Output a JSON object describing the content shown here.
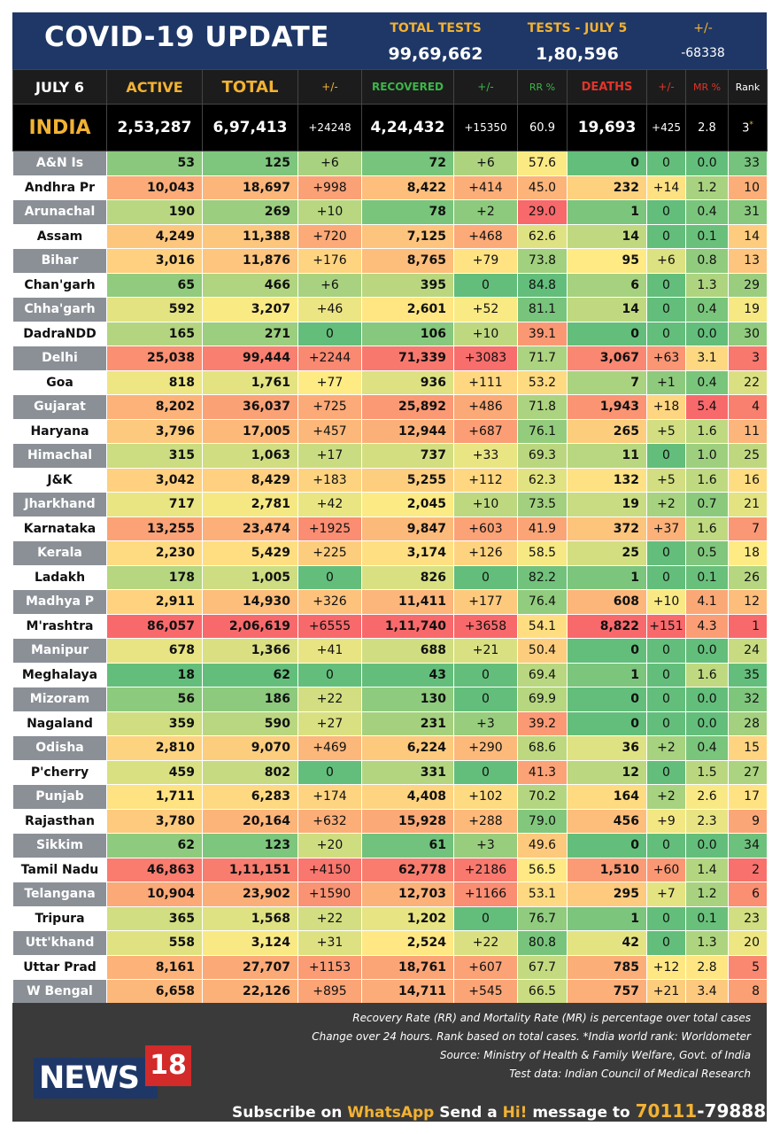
{
  "header": {
    "title": "COVID-19 UPDATE",
    "total_tests_label": "TOTAL TESTS",
    "total_tests_value": "99,69,662",
    "tests_day_label": "TESTS - JULY 5",
    "tests_day_value": "1,80,596",
    "change_label": "+/-",
    "change_value": "-68338"
  },
  "columns": {
    "date": "JULY 6",
    "active": "ACTIVE",
    "total": "TOTAL",
    "total_change": "+/-",
    "recovered": "RECOVERED",
    "recovered_change": "+/-",
    "rr": "RR %",
    "deaths": "DEATHS",
    "deaths_change": "+/-",
    "mr": "MR %",
    "rank": "Rank"
  },
  "india": {
    "name": "INDIA",
    "active": "2,53,287",
    "total": "6,97,413",
    "total_change": "+24248",
    "recovered": "4,24,432",
    "recovered_change": "+15350",
    "rr": "60.9",
    "deaths": "19,693",
    "deaths_change": "+425",
    "mr": "2.8",
    "rank": "3",
    "rank_mark": "*"
  },
  "rows": [
    {
      "name": "A&N Is",
      "active": "53",
      "total": "125",
      "tc": "+6",
      "rec": "72",
      "rc": "+6",
      "rr": "57.6",
      "deaths": "0",
      "dc": "0",
      "mr": "0.0",
      "rank": "33"
    },
    {
      "name": "Andhra Pr",
      "active": "10,043",
      "total": "18,697",
      "tc": "+998",
      "rec": "8,422",
      "rc": "+414",
      "rr": "45.0",
      "deaths": "232",
      "dc": "+14",
      "mr": "1.2",
      "rank": "10"
    },
    {
      "name": "Arunachal",
      "active": "190",
      "total": "269",
      "tc": "+10",
      "rec": "78",
      "rc": "+2",
      "rr": "29.0",
      "deaths": "1",
      "dc": "0",
      "mr": "0.4",
      "rank": "31"
    },
    {
      "name": "Assam",
      "active": "4,249",
      "total": "11,388",
      "tc": "+720",
      "rec": "7,125",
      "rc": "+468",
      "rr": "62.6",
      "deaths": "14",
      "dc": "0",
      "mr": "0.1",
      "rank": "14"
    },
    {
      "name": "Bihar",
      "active": "3,016",
      "total": "11,876",
      "tc": "+176",
      "rec": "8,765",
      "rc": "+79",
      "rr": "73.8",
      "deaths": "95",
      "dc": "+6",
      "mr": "0.8",
      "rank": "13"
    },
    {
      "name": "Chan'garh",
      "active": "65",
      "total": "466",
      "tc": "+6",
      "rec": "395",
      "rc": "0",
      "rr": "84.8",
      "deaths": "6",
      "dc": "0",
      "mr": "1.3",
      "rank": "29"
    },
    {
      "name": "Chha'garh",
      "active": "592",
      "total": "3,207",
      "tc": "+46",
      "rec": "2,601",
      "rc": "+52",
      "rr": "81.1",
      "deaths": "14",
      "dc": "0",
      "mr": "0.4",
      "rank": "19"
    },
    {
      "name": "DadraNDD",
      "active": "165",
      "total": "271",
      "tc": "0",
      "rec": "106",
      "rc": "+10",
      "rr": "39.1",
      "deaths": "0",
      "dc": "0",
      "mr": "0.0",
      "rank": "30"
    },
    {
      "name": "Delhi",
      "active": "25,038",
      "total": "99,444",
      "tc": "+2244",
      "rec": "71,339",
      "rc": "+3083",
      "rr": "71.7",
      "deaths": "3,067",
      "dc": "+63",
      "mr": "3.1",
      "rank": "3"
    },
    {
      "name": "Goa",
      "active": "818",
      "total": "1,761",
      "tc": "+77",
      "rec": "936",
      "rc": "+111",
      "rr": "53.2",
      "deaths": "7",
      "dc": "+1",
      "mr": "0.4",
      "rank": "22"
    },
    {
      "name": "Gujarat",
      "active": "8,202",
      "total": "36,037",
      "tc": "+725",
      "rec": "25,892",
      "rc": "+486",
      "rr": "71.8",
      "deaths": "1,943",
      "dc": "+18",
      "mr": "5.4",
      "rank": "4"
    },
    {
      "name": "Haryana",
      "active": "3,796",
      "total": "17,005",
      "tc": "+457",
      "rec": "12,944",
      "rc": "+687",
      "rr": "76.1",
      "deaths": "265",
      "dc": "+5",
      "mr": "1.6",
      "rank": "11"
    },
    {
      "name": "Himachal",
      "active": "315",
      "total": "1,063",
      "tc": "+17",
      "rec": "737",
      "rc": "+33",
      "rr": "69.3",
      "deaths": "11",
      "dc": "0",
      "mr": "1.0",
      "rank": "25"
    },
    {
      "name": "J&K",
      "active": "3,042",
      "total": "8,429",
      "tc": "+183",
      "rec": "5,255",
      "rc": "+112",
      "rr": "62.3",
      "deaths": "132",
      "dc": "+5",
      "mr": "1.6",
      "rank": "16"
    },
    {
      "name": "Jharkhand",
      "active": "717",
      "total": "2,781",
      "tc": "+42",
      "rec": "2,045",
      "rc": "+10",
      "rr": "73.5",
      "deaths": "19",
      "dc": "+2",
      "mr": "0.7",
      "rank": "21"
    },
    {
      "name": "Karnataka",
      "active": "13,255",
      "total": "23,474",
      "tc": "+1925",
      "rec": "9,847",
      "rc": "+603",
      "rr": "41.9",
      "deaths": "372",
      "dc": "+37",
      "mr": "1.6",
      "rank": "7"
    },
    {
      "name": "Kerala",
      "active": "2,230",
      "total": "5,429",
      "tc": "+225",
      "rec": "3,174",
      "rc": "+126",
      "rr": "58.5",
      "deaths": "25",
      "dc": "0",
      "mr": "0.5",
      "rank": "18"
    },
    {
      "name": "Ladakh",
      "active": "178",
      "total": "1,005",
      "tc": "0",
      "rec": "826",
      "rc": "0",
      "rr": "82.2",
      "deaths": "1",
      "dc": "0",
      "mr": "0.1",
      "rank": "26"
    },
    {
      "name": "Madhya P",
      "active": "2,911",
      "total": "14,930",
      "tc": "+326",
      "rec": "11,411",
      "rc": "+177",
      "rr": "76.4",
      "deaths": "608",
      "dc": "+10",
      "mr": "4.1",
      "rank": "12"
    },
    {
      "name": "M'rashtra",
      "active": "86,057",
      "total": "2,06,619",
      "tc": "+6555",
      "rec": "1,11,740",
      "rc": "+3658",
      "rr": "54.1",
      "deaths": "8,822",
      "dc": "+151",
      "mr": "4.3",
      "rank": "1"
    },
    {
      "name": "Manipur",
      "active": "678",
      "total": "1,366",
      "tc": "+41",
      "rec": "688",
      "rc": "+21",
      "rr": "50.4",
      "deaths": "0",
      "dc": "0",
      "mr": "0.0",
      "rank": "24"
    },
    {
      "name": "Meghalaya",
      "active": "18",
      "total": "62",
      "tc": "0",
      "rec": "43",
      "rc": "0",
      "rr": "69.4",
      "deaths": "1",
      "dc": "0",
      "mr": "1.6",
      "rank": "35"
    },
    {
      "name": "Mizoram",
      "active": "56",
      "total": "186",
      "tc": "+22",
      "rec": "130",
      "rc": "0",
      "rr": "69.9",
      "deaths": "0",
      "dc": "0",
      "mr": "0.0",
      "rank": "32"
    },
    {
      "name": "Nagaland",
      "active": "359",
      "total": "590",
      "tc": "+27",
      "rec": "231",
      "rc": "+3",
      "rr": "39.2",
      "deaths": "0",
      "dc": "0",
      "mr": "0.0",
      "rank": "28"
    },
    {
      "name": "Odisha",
      "active": "2,810",
      "total": "9,070",
      "tc": "+469",
      "rec": "6,224",
      "rc": "+290",
      "rr": "68.6",
      "deaths": "36",
      "dc": "+2",
      "mr": "0.4",
      "rank": "15"
    },
    {
      "name": "P'cherry",
      "active": "459",
      "total": "802",
      "tc": "0",
      "rec": "331",
      "rc": "0",
      "rr": "41.3",
      "deaths": "12",
      "dc": "0",
      "mr": "1.5",
      "rank": "27"
    },
    {
      "name": "Punjab",
      "active": "1,711",
      "total": "6,283",
      "tc": "+174",
      "rec": "4,408",
      "rc": "+102",
      "rr": "70.2",
      "deaths": "164",
      "dc": "+2",
      "mr": "2.6",
      "rank": "17"
    },
    {
      "name": "Rajasthan",
      "active": "3,780",
      "total": "20,164",
      "tc": "+632",
      "rec": "15,928",
      "rc": "+288",
      "rr": "79.0",
      "deaths": "456",
      "dc": "+9",
      "mr": "2.3",
      "rank": "9"
    },
    {
      "name": "Sikkim",
      "active": "62",
      "total": "123",
      "tc": "+20",
      "rec": "61",
      "rc": "+3",
      "rr": "49.6",
      "deaths": "0",
      "dc": "0",
      "mr": "0.0",
      "rank": "34"
    },
    {
      "name": "Tamil Nadu",
      "active": "46,863",
      "total": "1,11,151",
      "tc": "+4150",
      "rec": "62,778",
      "rc": "+2186",
      "rr": "56.5",
      "deaths": "1,510",
      "dc": "+60",
      "mr": "1.4",
      "rank": "2"
    },
    {
      "name": "Telangana",
      "active": "10,904",
      "total": "23,902",
      "tc": "+1590",
      "rec": "12,703",
      "rc": "+1166",
      "rr": "53.1",
      "deaths": "295",
      "dc": "+7",
      "mr": "1.2",
      "rank": "6"
    },
    {
      "name": "Tripura",
      "active": "365",
      "total": "1,568",
      "tc": "+22",
      "rec": "1,202",
      "rc": "0",
      "rr": "76.7",
      "deaths": "1",
      "dc": "0",
      "mr": "0.1",
      "rank": "23"
    },
    {
      "name": "Utt'khand",
      "active": "558",
      "total": "3,124",
      "tc": "+31",
      "rec": "2,524",
      "rc": "+22",
      "rr": "80.8",
      "deaths": "42",
      "dc": "0",
      "mr": "1.3",
      "rank": "20"
    },
    {
      "name": "Uttar Prad",
      "active": "8,161",
      "total": "27,707",
      "tc": "+1153",
      "rec": "18,761",
      "rc": "+607",
      "rr": "67.7",
      "deaths": "785",
      "dc": "+12",
      "mr": "2.8",
      "rank": "5"
    },
    {
      "name": "W Bengal",
      "active": "6,658",
      "total": "22,126",
      "tc": "+895",
      "rec": "14,711",
      "rc": "+545",
      "rr": "66.5",
      "deaths": "757",
      "dc": "+21",
      "mr": "3.4",
      "rank": "8"
    }
  ],
  "footer": {
    "note1": "Recovery Rate (RR) and Mortality Rate (MR) is percentage over total cases",
    "note2": "Change over 24 hours. Rank based on total cases. *India world rank: Worldometer",
    "note3": "Source: Ministry of Health & Family Welfare, Govt. of India",
    "note4": "Test data: Indian Council of Medical Research",
    "logo_text": "NEWS",
    "logo_num": "18",
    "subscribe_1": "Subscribe on ",
    "subscribe_app": "WhatsApp",
    "subscribe_2": " Send a ",
    "subscribe_hi": "Hi!",
    "subscribe_3": " message to ",
    "subscribe_num1": "70111",
    "subscribe_num2": "-79888"
  },
  "colors": {
    "header_bg": "#1e3767",
    "gold": "#f2b233",
    "active_label": "#f2b233",
    "recovered_label": "#3cb54a",
    "rr_label": "#3cb54a",
    "deaths_label": "#e0352b",
    "scale_green": "#63be7b",
    "scale_yellow": "#ffeb84",
    "scale_red": "#f8696b"
  }
}
